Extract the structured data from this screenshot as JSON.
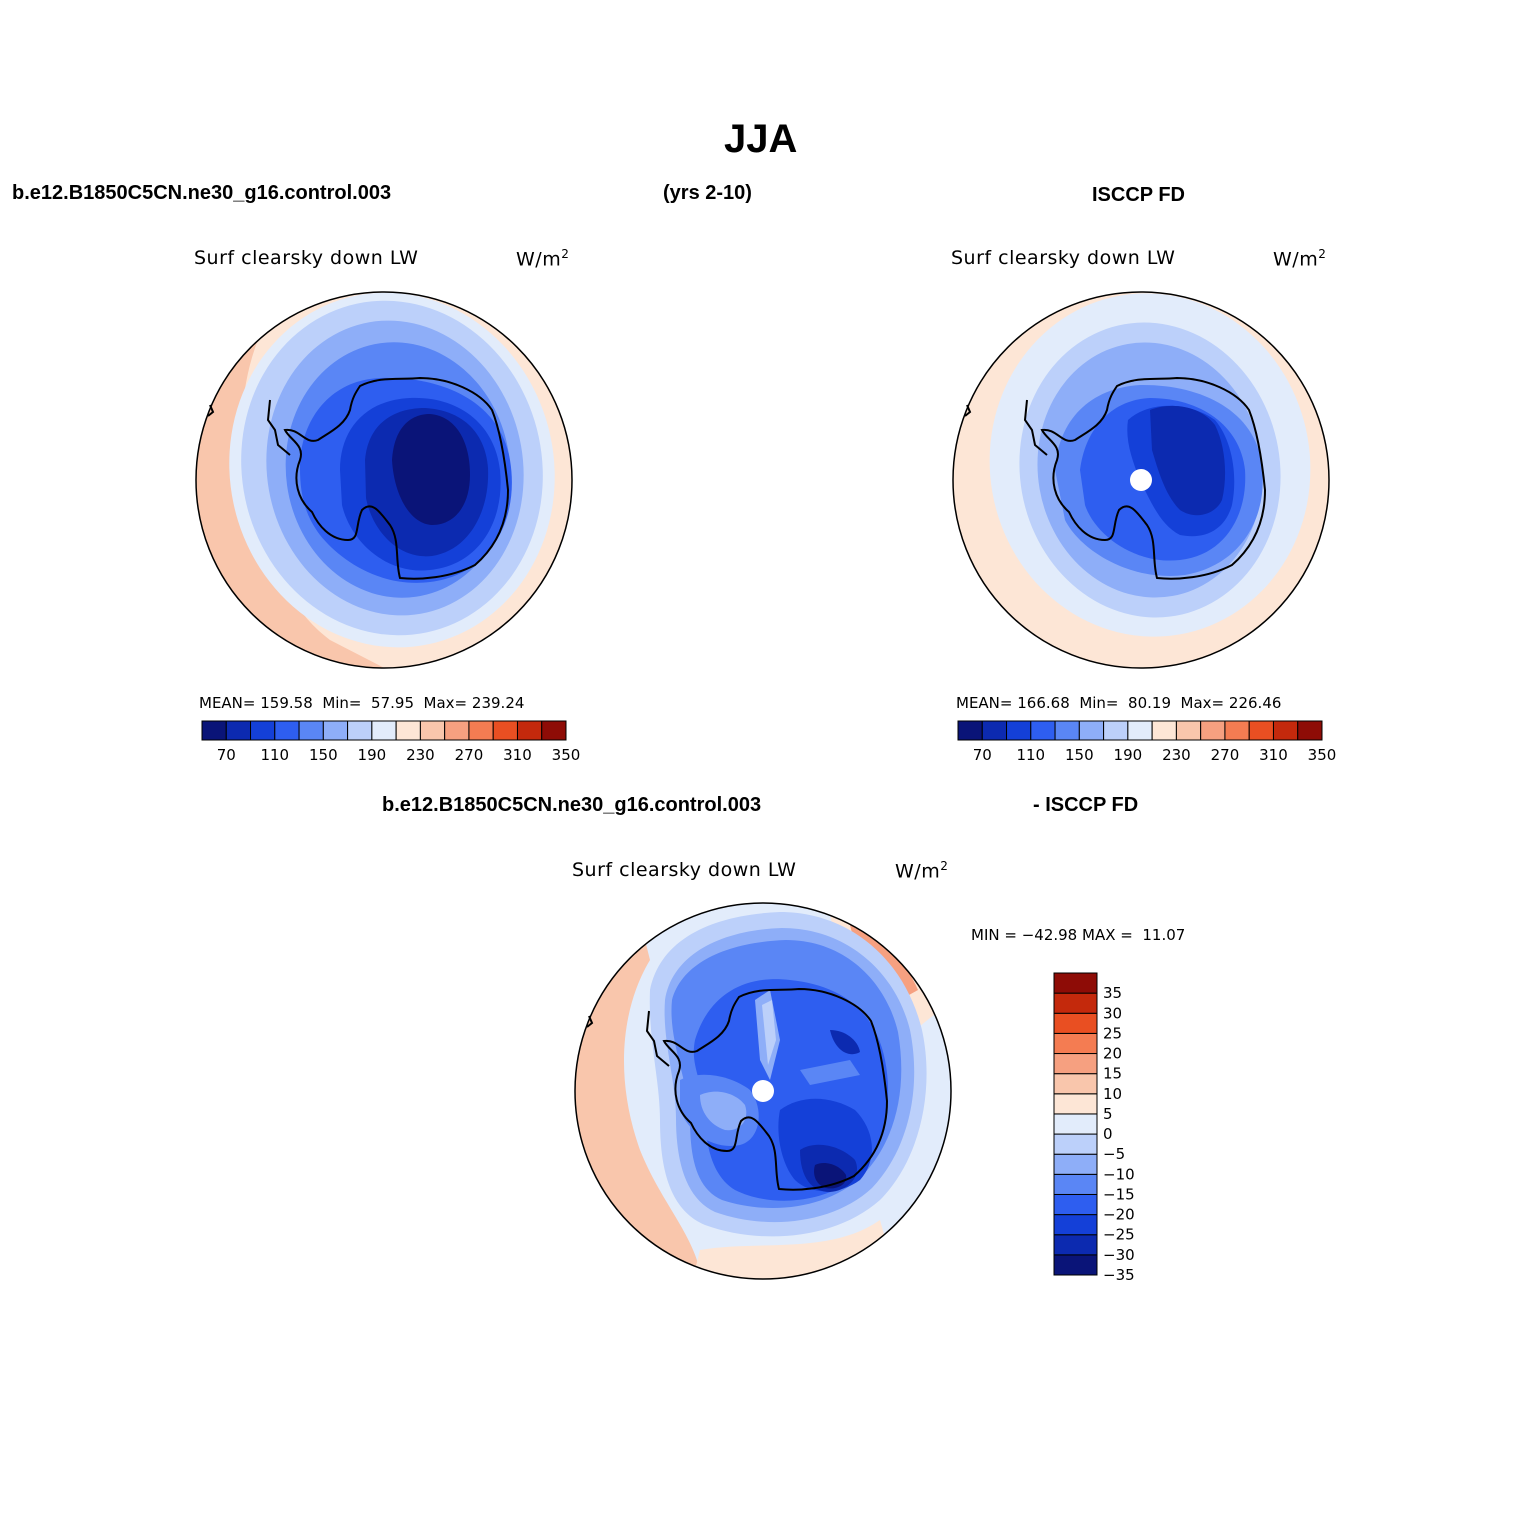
{
  "page_title": "JJA",
  "header": {
    "case_name": "b.e12.B1850C5CN.ne30_g16.control.003",
    "years": "(yrs 2-10)",
    "obs_name": "ISCCP FD",
    "diff_case_name": "b.e12.B1850C5CN.ne30_g16.control.003",
    "diff_obs_name": "- ISCCP FD"
  },
  "colors": {
    "abs_scale": [
      "#0a1478",
      "#0c2ab0",
      "#1440d8",
      "#2e5ef0",
      "#5a86f5",
      "#8eaef8",
      "#bcd0fa",
      "#e2ecfb",
      "#fde6d6",
      "#f9c6ac",
      "#f6a080",
      "#f47c52",
      "#e94f22",
      "#c4290c",
      "#8e0c06"
    ],
    "diff_scale": [
      "#0a1478",
      "#0c2ab0",
      "#1440d8",
      "#2e5ef0",
      "#5a86f5",
      "#8eaef8",
      "#bcd0fa",
      "#e2ecfb",
      "#fde6d6",
      "#f9c6ac",
      "#f6a080",
      "#f47c52",
      "#e94f22",
      "#c4290c",
      "#8e0c06"
    ]
  },
  "chart_data": [
    {
      "type": "heatmap",
      "panel": "model",
      "projection": "south-polar-stereographic",
      "title": "Surf clearsky down LW",
      "units": "W/m",
      "units_exp": "2",
      "stats": {
        "mean_label": "MEAN=",
        "mean": "159.58",
        "min_label": "Min=",
        "min": "57.95",
        "max_label": "Max=",
        "max": "239.24"
      },
      "contour_levels": [
        60,
        70,
        90,
        110,
        130,
        150,
        170,
        190,
        210,
        230,
        250,
        270,
        290,
        310,
        330,
        350
      ],
      "colorbar_tick_labels": [
        "70",
        "110",
        "150",
        "190",
        "230",
        "270",
        "310",
        "350"
      ],
      "colorbar_orientation": "horizontal"
    },
    {
      "type": "heatmap",
      "panel": "observations",
      "projection": "south-polar-stereographic",
      "title": "Surf clearsky down LW",
      "units": "W/m",
      "units_exp": "2",
      "stats": {
        "mean_label": "MEAN=",
        "mean": "166.68",
        "min_label": "Min=",
        "min": "80.19",
        "max_label": "Max=",
        "max": "226.46"
      },
      "contour_levels": [
        60,
        70,
        90,
        110,
        130,
        150,
        170,
        190,
        210,
        230,
        250,
        270,
        290,
        310,
        330,
        350
      ],
      "colorbar_tick_labels": [
        "70",
        "110",
        "150",
        "190",
        "230",
        "270",
        "310",
        "350"
      ],
      "colorbar_orientation": "horizontal"
    },
    {
      "type": "heatmap",
      "panel": "difference",
      "projection": "south-polar-stereographic",
      "title": "Surf clearsky down LW",
      "units": "W/m",
      "units_exp": "2",
      "stats": {
        "min_label": "MIN =",
        "min": "−42.98",
        "max_label": "MAX =",
        "max": "11.07"
      },
      "contour_levels": [
        -35,
        -30,
        -25,
        -20,
        -15,
        -10,
        -5,
        0,
        5,
        10,
        15,
        20,
        25,
        30,
        35
      ],
      "colorbar_tick_labels": [
        "35",
        "30",
        "25",
        "20",
        "15",
        "10",
        "5",
        "0",
        "−5",
        "−10",
        "−15",
        "−20",
        "−25",
        "−30",
        "−35"
      ],
      "colorbar_orientation": "vertical"
    }
  ]
}
